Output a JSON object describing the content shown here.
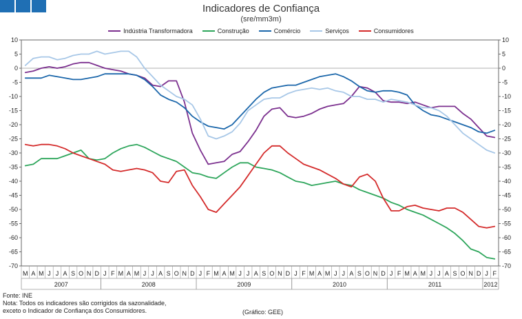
{
  "header": {
    "title": "Indicadores de Confiança",
    "subtitle": "(sre/mm3m)"
  },
  "footer": {
    "source": "Fonte: INE",
    "note_line1": "Nota: Todos os indicadores são corrigidos da sazonalidade,",
    "note_line2": "exceto o Indicador de Confiança dos Consumidores.",
    "credit": "(Gráfico: GEE)"
  },
  "chart_data": {
    "type": "line",
    "title": "Indicadores de Confiança",
    "subtitle": "(sre/mm3m)",
    "ylim": [
      -70,
      10
    ],
    "yticks": [
      10,
      5,
      0,
      -5,
      -10,
      -15,
      -20,
      -25,
      -30,
      -35,
      -40,
      -45,
      -50,
      -55,
      -60,
      -65,
      -70
    ],
    "grid": false,
    "legend_position": "top",
    "month_labels": [
      "M",
      "A",
      "M",
      "J",
      "J",
      "A",
      "S",
      "O",
      "N",
      "D",
      "J",
      "F",
      "M",
      "A",
      "M",
      "J",
      "J",
      "A",
      "S",
      "O",
      "N",
      "D",
      "J",
      "F",
      "M",
      "A",
      "M",
      "J",
      "J",
      "A",
      "S",
      "O",
      "N",
      "D",
      "J",
      "F",
      "M",
      "A",
      "M",
      "J",
      "J",
      "A",
      "S",
      "O",
      "N",
      "D",
      "J",
      "F",
      "M",
      "A",
      "M",
      "J",
      "J",
      "A",
      "S",
      "O",
      "N",
      "D",
      "J",
      "F"
    ],
    "year_labels": [
      {
        "label": "2007",
        "start": 0,
        "end": 9
      },
      {
        "label": "2008",
        "start": 10,
        "end": 21
      },
      {
        "label": "2009",
        "start": 22,
        "end": 33
      },
      {
        "label": "2010",
        "start": 34,
        "end": 45
      },
      {
        "label": "2011",
        "start": 46,
        "end": 57
      },
      {
        "label": "2012",
        "start": 58,
        "end": 59
      }
    ],
    "series": [
      {
        "name": "Indústria Transformadora",
        "color": "#7b2f8e",
        "values": [
          -1.5,
          -1,
          0,
          0.5,
          0,
          0.5,
          1.5,
          2,
          2,
          1,
          0,
          -0.5,
          -1,
          -2,
          -2.5,
          -3.5,
          -6,
          -6.5,
          -4.5,
          -4.5,
          -12,
          -23,
          -29,
          -34,
          -33.5,
          -33,
          -30.5,
          -29.5,
          -26,
          -22,
          -17,
          -14.5,
          -14,
          -17,
          -17.5,
          -17,
          -16,
          -14.5,
          -13.5,
          -13,
          -12.5,
          -10,
          -6.5,
          -7,
          -8.5,
          -11.5,
          -12,
          -12,
          -12.5,
          -12,
          -13,
          -14,
          -13.5,
          -13.5,
          -13.5,
          -16,
          -18,
          -21,
          -24,
          -24.5
        ]
      },
      {
        "name": "Construção",
        "color": "#2ca55a",
        "values": [
          -34.5,
          -34,
          -32,
          -32,
          -32,
          -31,
          -30,
          -29,
          -32,
          -32.5,
          -32,
          -30,
          -28.5,
          -27.5,
          -27,
          -28,
          -29.5,
          -31,
          -32,
          -33,
          -35,
          -37,
          -37.5,
          -38.5,
          -39,
          -37,
          -35,
          -33.5,
          -33.5,
          -35,
          -35.5,
          -36,
          -37,
          -38.5,
          -40,
          -40.5,
          -41.5,
          -41,
          -40.5,
          -40,
          -41,
          -41.5,
          -43,
          -44,
          -45,
          -46,
          -47.5,
          -48.5,
          -50,
          -51,
          -52,
          -53.5,
          -55,
          -56.5,
          -58.5,
          -61,
          -64,
          -65,
          -67,
          -67.5
        ]
      },
      {
        "name": "Comércio",
        "color": "#1a66aa",
        "values": [
          -3.5,
          -3.5,
          -3.5,
          -2.5,
          -3,
          -3.5,
          -4,
          -4,
          -3.5,
          -3,
          -2,
          -2,
          -2,
          -2,
          -2.5,
          -4,
          -6.5,
          -9.5,
          -11,
          -12,
          -14,
          -17,
          -19,
          -20.5,
          -21,
          -21.5,
          -20,
          -17,
          -14,
          -11,
          -8.5,
          -7,
          -6.5,
          -6,
          -6,
          -5,
          -4,
          -3,
          -2.5,
          -2,
          -3,
          -4.5,
          -6.5,
          -8,
          -8.5,
          -8,
          -8,
          -8.5,
          -9.5,
          -13,
          -15,
          -16.5,
          -17,
          -18,
          -19,
          -20,
          -21,
          -22.5,
          -23,
          -22
        ]
      },
      {
        "name": "Serviços",
        "color": "#a7c7e7",
        "values": [
          1,
          3.5,
          4,
          4,
          3,
          3.5,
          4.5,
          5,
          5,
          6,
          5,
          5.5,
          6,
          6,
          4,
          0,
          -3,
          -6,
          -8,
          -10,
          -11,
          -13,
          -18,
          -24,
          -25,
          -24,
          -22.5,
          -19.5,
          -15,
          -13,
          -11,
          -10.5,
          -10.5,
          -9,
          -8,
          -7.5,
          -7,
          -7.5,
          -7,
          -8,
          -8.5,
          -10,
          -10,
          -11,
          -11,
          -12,
          -11,
          -11.5,
          -12,
          -13,
          -14,
          -14,
          -15,
          -17,
          -20,
          -23,
          -25,
          -27,
          -29,
          -30
        ]
      },
      {
        "name": "Consumidores",
        "color": "#d42a2a",
        "values": [
          -27,
          -27.5,
          -27,
          -27,
          -27.5,
          -28.5,
          -30,
          -31,
          -32,
          -33,
          -34,
          -36,
          -36.5,
          -36,
          -35.5,
          -36,
          -37,
          -40,
          -40.5,
          -36.5,
          -36,
          -41.5,
          -45.5,
          -50,
          -51,
          -48,
          -45,
          -42,
          -38,
          -34,
          -30,
          -27.5,
          -27.5,
          -30,
          -32,
          -34,
          -35,
          -36,
          -37.5,
          -39,
          -41,
          -42,
          -38.5,
          -37.5,
          -40,
          -46,
          -50.5,
          -50.5,
          -49,
          -48.5,
          -49.5,
          -50,
          -50.5,
          -49.5,
          -49.5,
          -51,
          -53.5,
          -56,
          -56.5,
          -56
        ]
      }
    ]
  }
}
